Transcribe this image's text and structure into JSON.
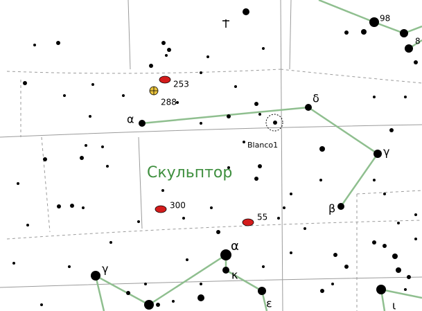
{
  "labels": [
    "98",
    "8",
    "253",
    "288",
    "α",
    "δ",
    "Blanco1",
    "γ",
    "Скульптор",
    "300",
    "55",
    "β",
    "α",
    "κ",
    "γ",
    "ε",
    "ι"
  ]
}
